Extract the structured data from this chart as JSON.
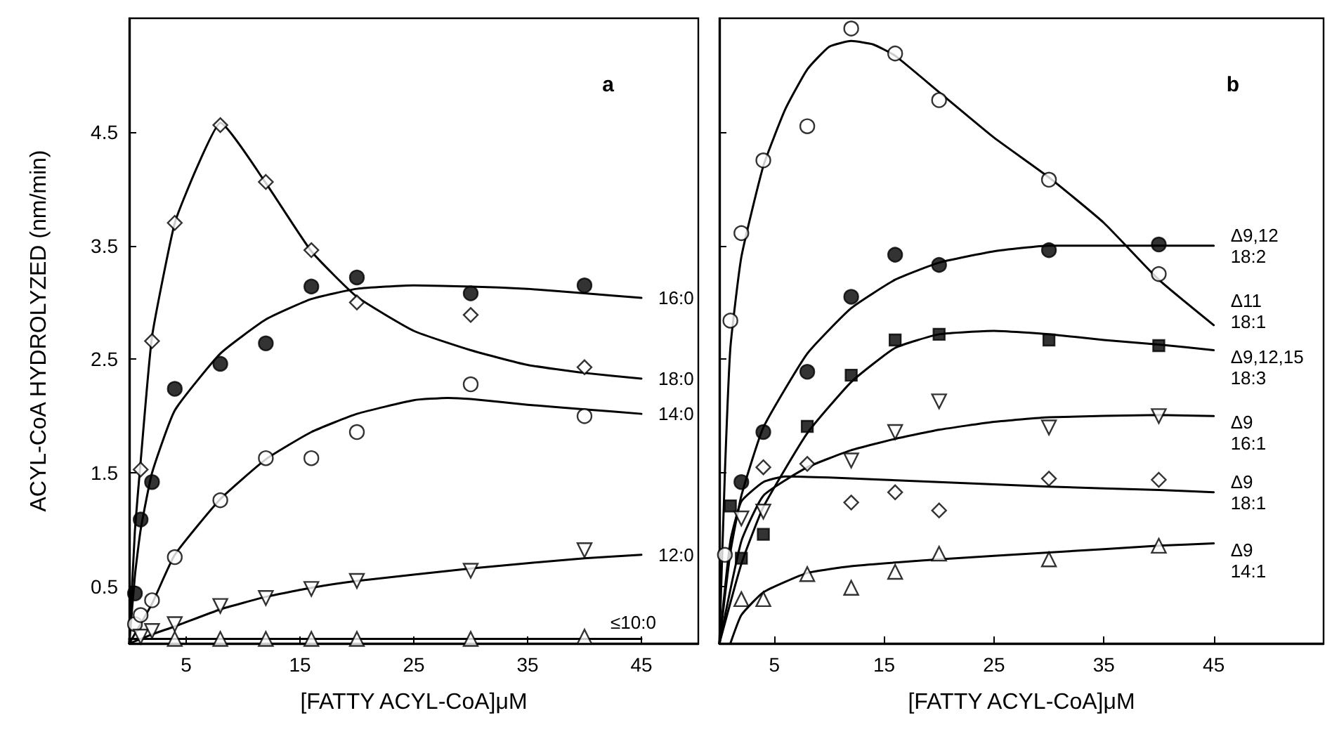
{
  "chart_data": [
    {
      "type": "scatter",
      "xlabel": "[FATTY ACYL-CoA]μM",
      "ylabel": "ACYL-CoA HYDROLYZED (nm/min)",
      "annotations": [
        "a"
      ],
      "xlim": [
        0,
        50
      ],
      "ylim": [
        0,
        5.5
      ],
      "xticks": [
        5,
        15,
        25,
        35,
        45
      ],
      "yticks": [
        0.5,
        1.5,
        2.5,
        3.5,
        4.5
      ],
      "series": [
        {
          "marker": "diamond",
          "color": "#ffffff",
          "x": [
            1,
            2,
            4,
            8,
            12,
            16,
            20,
            30,
            40
          ],
          "values": [
            1.53,
            2.66,
            3.7,
            4.56,
            4.06,
            3.46,
            3.0,
            2.89,
            2.43
          ]
        },
        {
          "type": "line",
          "name": "18:0",
          "color": "#000000",
          "marker": "none",
          "x": [
            0,
            0.5,
            1,
            2,
            4,
            6,
            8,
            12,
            16,
            20,
            25,
            30,
            35,
            40,
            45
          ],
          "values": [
            0,
            1.0,
            1.6,
            2.7,
            3.7,
            4.2,
            4.58,
            4.05,
            3.45,
            3.05,
            2.75,
            2.58,
            2.45,
            2.38,
            2.33
          ]
        },
        {
          "marker": "circle",
          "color": "#000000",
          "x": [
            0.5,
            1,
            2,
            4,
            8,
            12,
            16,
            20,
            30,
            40
          ],
          "values": [
            0.44,
            1.09,
            1.42,
            2.24,
            2.46,
            2.64,
            3.14,
            3.22,
            3.08,
            3.15
          ]
        },
        {
          "type": "line",
          "name": "16:0",
          "color": "#000000",
          "marker": "none",
          "x": [
            0,
            0.5,
            1,
            2,
            4,
            8,
            12,
            16,
            20,
            25,
            30,
            35,
            40,
            45
          ],
          "values": [
            0,
            0.6,
            1.0,
            1.5,
            2.05,
            2.55,
            2.85,
            3.03,
            3.12,
            3.15,
            3.14,
            3.12,
            3.08,
            3.04
          ]
        },
        {
          "marker": "circle",
          "color": "#ffffff",
          "x": [
            0.5,
            1,
            2,
            4,
            8,
            12,
            16,
            20,
            30,
            40
          ],
          "values": [
            0.17,
            0.25,
            0.38,
            0.76,
            1.26,
            1.63,
            1.63,
            1.86,
            2.28,
            2.0
          ]
        },
        {
          "type": "line",
          "name": "14:0",
          "color": "#000000",
          "marker": "none",
          "x": [
            0,
            2,
            4,
            8,
            12,
            16,
            20,
            25,
            28,
            30,
            35,
            40,
            45
          ],
          "values": [
            0,
            0.35,
            0.78,
            1.27,
            1.62,
            1.86,
            2.02,
            2.14,
            2.16,
            2.15,
            2.1,
            2.06,
            2.02
          ]
        },
        {
          "marker": "triangle-down",
          "color": "#ffffff",
          "x": [
            1,
            2,
            4,
            8,
            12,
            16,
            20,
            30,
            40
          ],
          "values": [
            0.06,
            0.11,
            0.17,
            0.33,
            0.4,
            0.48,
            0.55,
            0.64,
            0.82
          ]
        },
        {
          "type": "line",
          "name": "12:0",
          "color": "#000000",
          "marker": "none",
          "x": [
            0,
            2,
            4,
            8,
            12,
            16,
            20,
            30,
            40,
            45
          ],
          "values": [
            0,
            0.08,
            0.15,
            0.3,
            0.41,
            0.49,
            0.55,
            0.66,
            0.75,
            0.78
          ]
        },
        {
          "marker": "triangle",
          "color": "#ffffff",
          "x": [
            4,
            8,
            12,
            16,
            20,
            30,
            40
          ],
          "values": [
            0.04,
            0.04,
            0.04,
            0.04,
            0.04,
            0.04,
            0.06
          ]
        },
        {
          "type": "line",
          "name": "≤10:0",
          "color": "#000000",
          "marker": "none",
          "x": [
            0,
            45
          ],
          "values": [
            0.04,
            0.04
          ]
        }
      ]
    },
    {
      "type": "scatter",
      "xlabel": "[FATTY ACYL-CoA]μM",
      "annotations": [
        "b"
      ],
      "tick_labels": "x",
      "xlim": [
        0,
        55
      ],
      "ylim": [
        0,
        5.5
      ],
      "xticks": [
        5,
        15,
        25,
        35,
        45
      ],
      "yticks": [
        0.5,
        1.5,
        2.5,
        3.5,
        4.5
      ],
      "series": [
        {
          "marker": "circle",
          "color": "#ffffff",
          "x": [
            0.5,
            1,
            2,
            4,
            8,
            12,
            16,
            20,
            30,
            40
          ],
          "values": [
            0.78,
            2.84,
            3.61,
            4.25,
            4.55,
            5.41,
            5.19,
            4.78,
            4.08,
            3.25
          ]
        },
        {
          "type": "line",
          "name": "Δ11 18:1",
          "color": "#000000",
          "marker": "none",
          "x": [
            0,
            0.5,
            1,
            2,
            4,
            6,
            8,
            10,
            12,
            14,
            16,
            20,
            25,
            30,
            35,
            40,
            45
          ],
          "values": [
            0,
            1.5,
            2.6,
            3.4,
            4.2,
            4.7,
            5.05,
            5.25,
            5.3,
            5.27,
            5.17,
            4.85,
            4.45,
            4.1,
            3.7,
            3.2,
            2.8
          ]
        },
        {
          "marker": "circle",
          "color": "#000000",
          "x": [
            2,
            4,
            8,
            12,
            16,
            20,
            30,
            40
          ],
          "values": [
            1.42,
            1.86,
            2.39,
            3.05,
            3.42,
            3.33,
            3.46,
            3.51
          ]
        },
        {
          "type": "line",
          "name": "Δ9,12 18:2",
          "color": "#000000",
          "marker": "none",
          "x": [
            0,
            1,
            2,
            4,
            8,
            12,
            16,
            20,
            25,
            30,
            35,
            40,
            45
          ],
          "values": [
            0,
            0.8,
            1.3,
            1.9,
            2.55,
            2.95,
            3.2,
            3.35,
            3.45,
            3.5,
            3.5,
            3.5,
            3.5
          ]
        },
        {
          "marker": "square",
          "color": "#000000",
          "x": [
            1,
            2,
            4,
            8,
            12,
            16,
            20,
            30,
            40
          ],
          "values": [
            1.21,
            0.75,
            0.96,
            1.91,
            2.36,
            2.67,
            2.72,
            2.67,
            2.62
          ]
        },
        {
          "type": "line",
          "name": "Δ9,12,15 18:3",
          "color": "#000000",
          "marker": "none",
          "x": [
            0,
            2,
            4,
            8,
            12,
            16,
            20,
            25,
            30,
            35,
            40,
            45
          ],
          "values": [
            0,
            0.7,
            1.2,
            1.85,
            2.3,
            2.6,
            2.72,
            2.75,
            2.72,
            2.67,
            2.63,
            2.58
          ]
        },
        {
          "marker": "triangle-down",
          "color": "#ffffff",
          "x": [
            2,
            4,
            12,
            16,
            20,
            30,
            40
          ],
          "values": [
            1.1,
            1.16,
            1.61,
            1.86,
            2.13,
            1.9,
            2.0
          ]
        },
        {
          "type": "line",
          "name": "Δ9 16:1",
          "color": "#000000",
          "marker": "none",
          "x": [
            0,
            2,
            4,
            8,
            12,
            16,
            20,
            25,
            30,
            40,
            45
          ],
          "values": [
            0,
            0.9,
            1.3,
            1.55,
            1.7,
            1.8,
            1.88,
            1.95,
            1.99,
            2.01,
            2.0
          ]
        },
        {
          "marker": "diamond",
          "color": "#ffffff",
          "x": [
            4,
            8,
            12,
            16,
            20,
            30,
            40
          ],
          "values": [
            1.55,
            1.58,
            1.24,
            1.33,
            1.17,
            1.45,
            1.44
          ]
        },
        {
          "type": "line",
          "name": "Δ9 18:1",
          "color": "#000000",
          "marker": "none",
          "x": [
            0,
            1,
            2,
            4,
            6,
            10,
            20,
            30,
            40,
            45
          ],
          "values": [
            0,
            0.9,
            1.25,
            1.42,
            1.47,
            1.46,
            1.42,
            1.38,
            1.35,
            1.33
          ]
        },
        {
          "marker": "triangle",
          "color": "#ffffff",
          "x": [
            2,
            4,
            8,
            12,
            16,
            20,
            30,
            40
          ],
          "values": [
            0.39,
            0.39,
            0.61,
            0.49,
            0.63,
            0.79,
            0.74,
            0.86
          ]
        },
        {
          "type": "line",
          "name": "Δ9 14:1",
          "color": "#000000",
          "marker": "none",
          "x": [
            1,
            2,
            4,
            8,
            12,
            20,
            30,
            40,
            45
          ],
          "values": [
            0,
            0.25,
            0.45,
            0.62,
            0.68,
            0.74,
            0.8,
            0.86,
            0.88
          ]
        }
      ]
    }
  ]
}
